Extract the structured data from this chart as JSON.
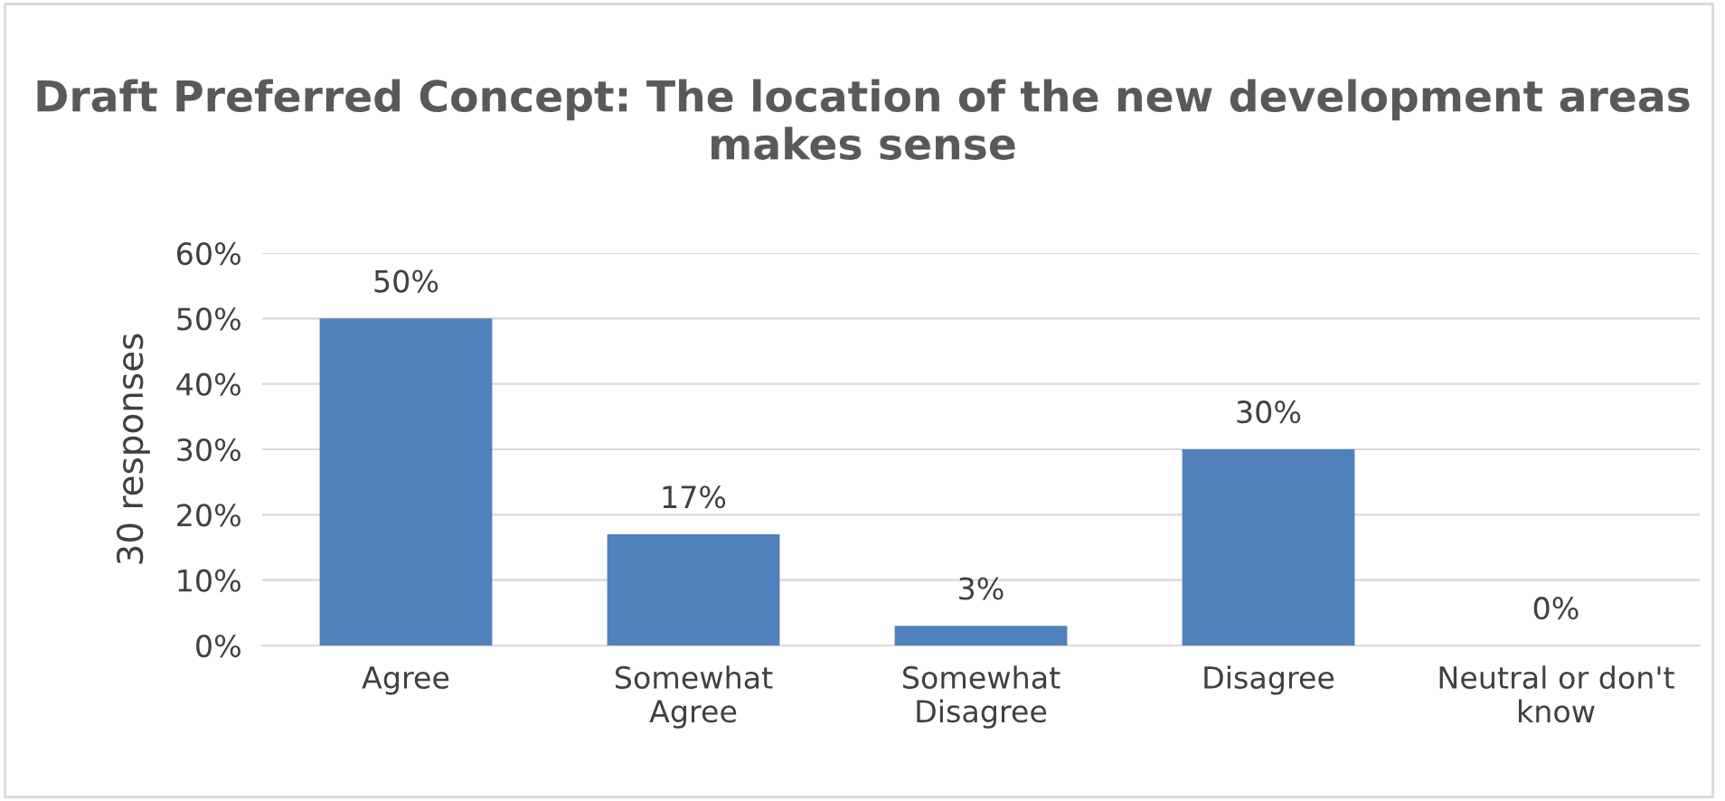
{
  "chart_data": {
    "type": "bar",
    "title": "Draft Preferred Concept: The location of the new development areas makes sense",
    "ylabel": "30 responses",
    "categories": [
      "Agree",
      "Somewhat\nAgree",
      "Somewhat\nDisagree",
      "Disagree",
      "Neutral or don't\nknow"
    ],
    "values": [
      50,
      17,
      3,
      30,
      0
    ],
    "value_labels": [
      "50%",
      "17%",
      "3%",
      "30%",
      "0%"
    ],
    "color": "#4f81bd",
    "ylim": [
      0,
      60
    ],
    "yticks": [
      {
        "value": 0,
        "label": "0%"
      },
      {
        "value": 10,
        "label": "10%"
      },
      {
        "value": 20,
        "label": "20%"
      },
      {
        "value": 30,
        "label": "30%"
      },
      {
        "value": 40,
        "label": "40%"
      },
      {
        "value": 50,
        "label": "50%"
      },
      {
        "value": 60,
        "label": "60%"
      }
    ],
    "grid": "y",
    "legend": false
  }
}
